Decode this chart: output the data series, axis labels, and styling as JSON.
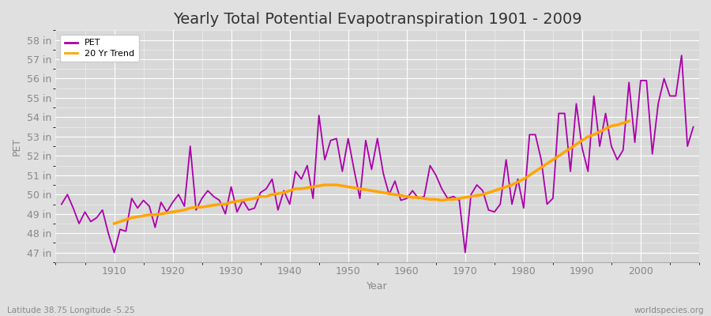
{
  "title": "Yearly Total Potential Evapotranspiration 1901 - 2009",
  "ylabel": "PET",
  "xlabel": "Year",
  "footer_left": "Latitude 38.75 Longitude -5.25",
  "footer_right": "worldspecies.org",
  "pet_color": "#AA00AA",
  "trend_color": "#FFA500",
  "fig_bg_color": "#E0E0E0",
  "plot_bg_color": "#D8D8D8",
  "years": [
    1901,
    1902,
    1903,
    1904,
    1905,
    1906,
    1907,
    1908,
    1909,
    1910,
    1911,
    1912,
    1913,
    1914,
    1915,
    1916,
    1917,
    1918,
    1919,
    1920,
    1921,
    1922,
    1923,
    1924,
    1925,
    1926,
    1927,
    1928,
    1929,
    1930,
    1931,
    1932,
    1933,
    1934,
    1935,
    1936,
    1937,
    1938,
    1939,
    1940,
    1941,
    1942,
    1943,
    1944,
    1945,
    1946,
    1947,
    1948,
    1949,
    1950,
    1951,
    1952,
    1953,
    1954,
    1955,
    1956,
    1957,
    1958,
    1959,
    1960,
    1961,
    1962,
    1963,
    1964,
    1965,
    1966,
    1967,
    1968,
    1969,
    1970,
    1971,
    1972,
    1973,
    1974,
    1975,
    1976,
    1977,
    1978,
    1979,
    1980,
    1981,
    1982,
    1983,
    1984,
    1985,
    1986,
    1987,
    1988,
    1989,
    1990,
    1991,
    1992,
    1993,
    1994,
    1995,
    1996,
    1997,
    1998,
    1999,
    2000,
    2001,
    2002,
    2003,
    2004,
    2005,
    2006,
    2007,
    2008,
    2009
  ],
  "pet_values": [
    49.5,
    50.0,
    49.3,
    48.5,
    49.1,
    48.6,
    48.8,
    49.2,
    48.0,
    47.0,
    48.2,
    48.1,
    49.8,
    49.3,
    49.7,
    49.4,
    48.3,
    49.6,
    49.1,
    49.6,
    50.0,
    49.4,
    52.5,
    49.2,
    49.8,
    50.2,
    49.9,
    49.7,
    49.0,
    50.4,
    49.1,
    49.7,
    49.2,
    49.3,
    50.1,
    50.3,
    50.8,
    49.2,
    50.2,
    49.5,
    51.2,
    50.8,
    51.5,
    49.8,
    54.1,
    51.8,
    52.8,
    52.9,
    51.2,
    52.9,
    51.3,
    49.8,
    52.8,
    51.3,
    52.9,
    51.1,
    50.0,
    50.7,
    49.7,
    49.8,
    50.2,
    49.8,
    49.9,
    51.5,
    51.0,
    50.3,
    49.8,
    49.9,
    49.7,
    47.0,
    50.0,
    50.5,
    50.2,
    49.2,
    49.1,
    49.5,
    51.8,
    49.5,
    50.8,
    49.3,
    53.1,
    53.1,
    51.8,
    49.5,
    49.8,
    54.2,
    54.2,
    51.2,
    54.7,
    52.4,
    51.2,
    55.1,
    52.5,
    54.2,
    52.5,
    51.8,
    52.3,
    55.8,
    52.7,
    55.9,
    55.9,
    52.1,
    54.7,
    56.0,
    55.1,
    55.1,
    57.2,
    52.5,
    53.5
  ],
  "trend_values": [
    null,
    null,
    null,
    null,
    null,
    null,
    null,
    null,
    null,
    48.5,
    48.6,
    48.7,
    48.8,
    48.85,
    48.9,
    48.95,
    48.95,
    49.0,
    49.05,
    49.1,
    49.15,
    49.2,
    49.3,
    49.35,
    49.35,
    49.4,
    49.45,
    49.5,
    49.5,
    49.6,
    49.65,
    49.7,
    49.75,
    49.8,
    49.9,
    49.9,
    50.0,
    50.05,
    50.1,
    50.2,
    50.3,
    50.3,
    50.35,
    50.4,
    50.45,
    50.5,
    50.5,
    50.5,
    50.45,
    50.4,
    50.35,
    50.3,
    50.25,
    50.2,
    50.15,
    50.1,
    50.05,
    50.0,
    49.95,
    49.9,
    49.85,
    49.85,
    49.8,
    49.75,
    49.75,
    49.7,
    49.75,
    49.75,
    49.8,
    49.85,
    49.9,
    49.95,
    50.0,
    50.1,
    50.2,
    50.3,
    50.4,
    50.5,
    50.65,
    50.8,
    51.0,
    51.2,
    51.4,
    51.6,
    51.8,
    52.0,
    52.2,
    52.4,
    52.6,
    52.8,
    53.0,
    53.1,
    53.25,
    53.4,
    53.55,
    53.6,
    53.7,
    53.8,
    null,
    null,
    null,
    null,
    null,
    null,
    null,
    null,
    null
  ],
  "ylim": [
    46.5,
    58.5
  ],
  "yticks": [
    47,
    48,
    49,
    50,
    51,
    52,
    53,
    54,
    55,
    56,
    57,
    58
  ],
  "xlim": [
    1900,
    2010
  ],
  "xticks": [
    1910,
    1920,
    1930,
    1940,
    1950,
    1960,
    1970,
    1980,
    1990,
    2000
  ],
  "grid_color": "#FFFFFF",
  "spine_color": "#AAAAAA",
  "tick_color": "#888888",
  "title_fontsize": 14,
  "label_fontsize": 9,
  "tick_fontsize": 9
}
